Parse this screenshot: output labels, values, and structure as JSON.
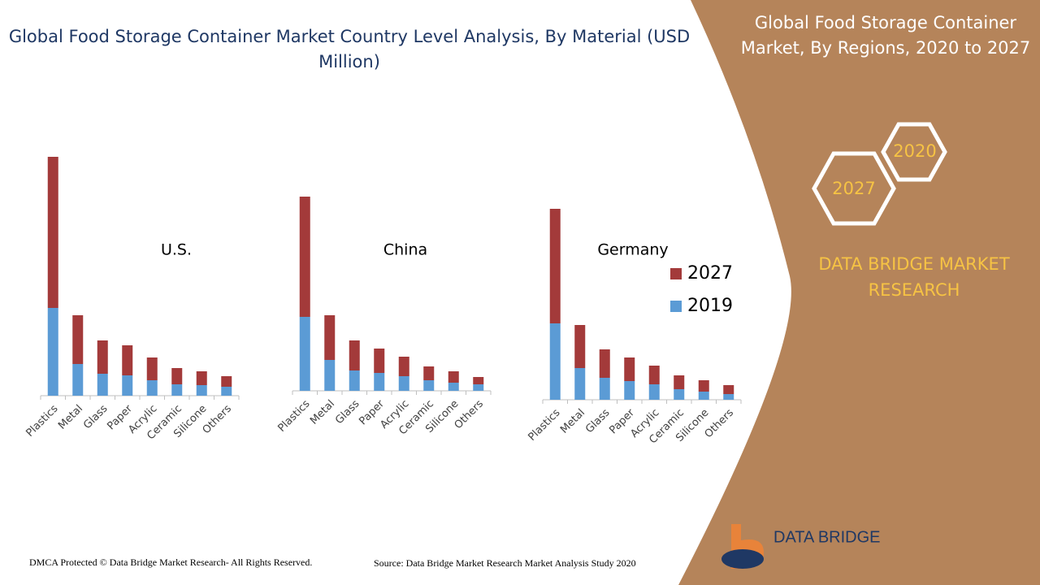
{
  "header": {
    "title_line1": "Global Food Storage Container Market Country Level Analysis, By Material (USD",
    "title_line2": "Million)"
  },
  "panel": {
    "title_line1": "Global Food Storage Container",
    "title_line2": "Market, By Regions, 2020 to 2027",
    "hex_a": "2020",
    "hex_b": "2027",
    "brand_line1": "DATA BRIDGE MARKET",
    "brand_line2": "RESEARCH",
    "logo": "DATA BRIDGE"
  },
  "footer": {
    "left": "DMCA Protected © Data Bridge Market Research- All Rights Reserved.",
    "right": "Source: Data Bridge Market Research Market Analysis Study 2020"
  },
  "chart_data": [
    {
      "type": "bar",
      "stacked": true,
      "title": "U.S.",
      "categories": [
        "Plastics",
        "Metal",
        "Glass",
        "Paper",
        "Acrylic",
        "Ceramic",
        "Silicone",
        "Others"
      ],
      "series": [
        {
          "color": "#5b9bd5",
          "values": [
            108,
            39,
            27,
            25,
            19,
            14,
            13,
            11
          ]
        },
        {
          "color": "#a33a3a",
          "values": [
            186,
            60,
            41,
            37,
            28,
            20,
            17,
            13
          ]
        }
      ]
    },
    {
      "type": "bar",
      "stacked": true,
      "title": "China",
      "categories": [
        "Plastics",
        "Metal",
        "Glass",
        "Paper",
        "Acrylic",
        "Ceramic",
        "Silicone",
        "Others"
      ],
      "series": [
        {
          "color": "#5b9bd5",
          "values": [
            91,
            38,
            25,
            22,
            18,
            13,
            10,
            8
          ]
        },
        {
          "color": "#a33a3a",
          "values": [
            148,
            55,
            37,
            30,
            24,
            17,
            14,
            9
          ]
        }
      ]
    },
    {
      "type": "bar",
      "stacked": true,
      "title": "Germany",
      "categories": [
        "Plastics",
        "Metal",
        "Glass",
        "Paper",
        "Acrylic",
        "Ceramic",
        "Silicone",
        "Others"
      ],
      "series": [
        {
          "name": "2019",
          "color": "#5b9bd5",
          "values": [
            94,
            39,
            27,
            23,
            19,
            13,
            10,
            7
          ]
        },
        {
          "name": "2027",
          "color": "#a33a3a",
          "values": [
            141,
            53,
            35,
            29,
            23,
            17,
            14,
            11
          ]
        }
      ]
    }
  ]
}
